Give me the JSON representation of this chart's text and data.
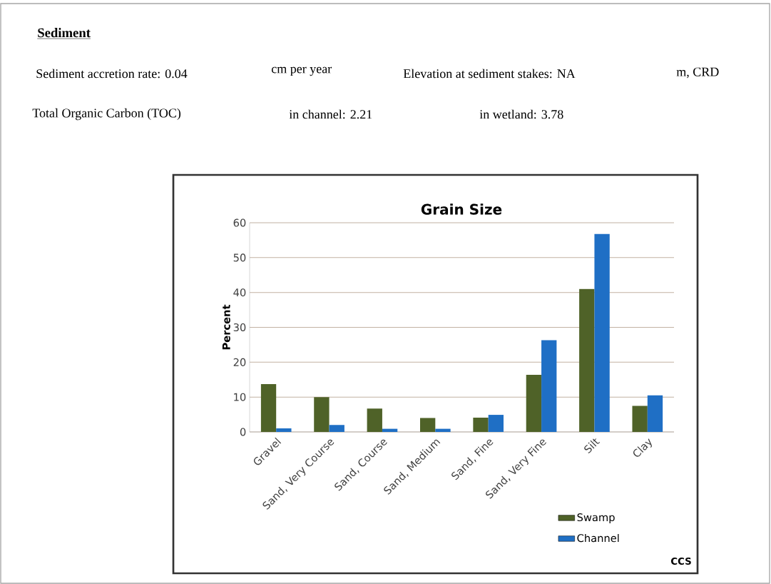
{
  "chart_data": {
    "type": "bar",
    "title": "Grain Size",
    "ylabel": "Percent",
    "categories": [
      "Gravel",
      "Sand, Very Course",
      "Sand, Course",
      "Sand, Medium",
      "Sand, Fine",
      "Sand, Very Fine",
      "Silt",
      "Clay"
    ],
    "series": [
      {
        "name": "Swamp",
        "color": "#4f6228",
        "values": [
          13.7,
          10.0,
          6.7,
          4.0,
          4.1,
          16.4,
          41.0,
          7.5
        ]
      },
      {
        "name": "Channel",
        "color": "#1f6fc5",
        "values": [
          1.0,
          2.0,
          0.9,
          0.9,
          4.9,
          26.3,
          56.8,
          10.5
        ]
      }
    ],
    "ylim": [
      0,
      60
    ],
    "yticks": [
      0,
      10,
      20,
      30,
      40,
      50,
      60
    ],
    "grid": "y",
    "legend": "bottom right",
    "annotations": [
      "Sediment",
      "Sediment accretion rate: 0.04",
      "cm per year",
      "Elevation at sediment stakes:  NA",
      "m, CRD",
      "Total Organic Carbon (TOC)",
      "in channel: 2.21",
      "in wetland:  3.78",
      "CCS"
    ]
  }
}
